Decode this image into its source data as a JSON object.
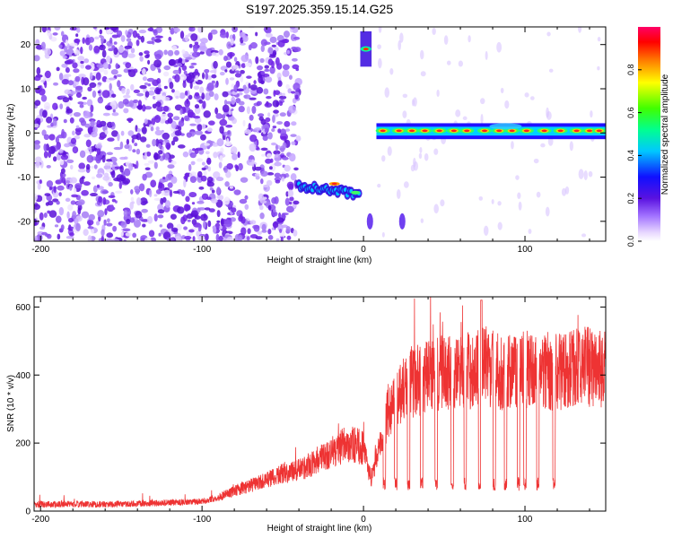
{
  "title": "S197.2025.359.15.14.G25",
  "chart_data": [
    {
      "type": "heatmap",
      "xlabel": "Height of straight line (km)",
      "ylabel": "Frequency (Hz)",
      "xlim": [
        -204,
        150
      ],
      "ylim": [
        -24.5,
        24
      ],
      "xticks": [
        -200,
        -100,
        0,
        100
      ],
      "yticks": [
        -20,
        -10,
        0,
        10,
        20
      ],
      "colorbar": {
        "label": "Normalized spectral amplitude",
        "ticks": [
          0.0,
          0.2,
          0.4,
          0.6,
          0.8
        ],
        "tick_labels": [
          "0.0",
          "0.2",
          "0.4",
          "0.6",
          "0.8"
        ]
      },
      "features": [
        {
          "x_range": [
            -204,
            -40
          ],
          "freq_range": [
            -24,
            24
          ],
          "description": "broadband noise"
        },
        {
          "x_range": [
            -40,
            -2
          ],
          "freq_start": -12,
          "freq_end": -14,
          "description": "descending tone"
        },
        {
          "x_range": [
            -2,
            5
          ],
          "freq": 19,
          "description": "tone"
        },
        {
          "x_range": [
            8,
            150
          ],
          "freq": 0.5,
          "description": "strong tone"
        }
      ]
    },
    {
      "type": "line",
      "xlabel": "Height of straight line (km)",
      "ylabel": "SNR (10 * v/v)",
      "xlim": [
        -204,
        150
      ],
      "ylim": [
        0,
        630
      ],
      "xticks": [
        -200,
        -100,
        0,
        100
      ],
      "yticks": [
        0,
        200,
        400,
        600
      ],
      "series": [
        {
          "name": "SNR",
          "color": "#ee3333",
          "x": [
            -204,
            -150,
            -100,
            -90,
            -80,
            -70,
            -60,
            -50,
            -40,
            -30,
            -20,
            -10,
            0,
            5,
            10,
            15,
            20,
            30,
            40,
            50,
            60,
            70,
            75,
            80,
            90,
            100,
            110,
            120,
            130,
            140,
            150
          ],
          "y": [
            20,
            20,
            28,
            40,
            60,
            75,
            90,
            110,
            120,
            145,
            170,
            200,
            185,
            90,
            200,
            290,
            340,
            380,
            395,
            405,
            410,
            415,
            430,
            420,
            405,
            415,
            410,
            410,
            420,
            425,
            420
          ],
          "dips": [
            13,
            20,
            28,
            36,
            45,
            55,
            63,
            72,
            81,
            88,
            96,
            100,
            108,
            118
          ],
          "dip_level": 60
        }
      ]
    }
  ]
}
